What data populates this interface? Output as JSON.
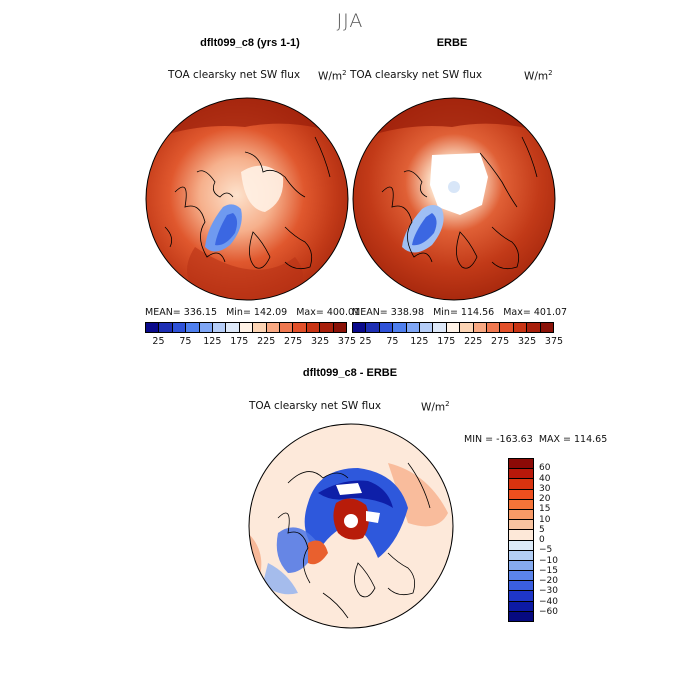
{
  "suptitle": "JJA",
  "panels": [
    {
      "title": "dflt099_c8 (yrs 1-1)",
      "variable": "TOA clearsky net SW flux",
      "units": "W/m",
      "units_sup": "2",
      "stats": "MEAN= 336.15   Min= 142.09   Max= 400.01"
    },
    {
      "title": "ERBE",
      "variable": "TOA clearsky net SW flux",
      "units": "W/m",
      "units_sup": "2",
      "stats": "MEAN= 338.98   Min= 114.56   Max= 401.07"
    },
    {
      "title": "dflt099_c8 - ERBE",
      "variable": "TOA clearsky net SW flux",
      "units": "W/m",
      "units_sup": "2",
      "stats": "MIN = -163.63  MAX = 114.65"
    }
  ],
  "top_colorbar": {
    "ticks": [
      "25",
      "75",
      "125",
      "175",
      "225",
      "275",
      "325",
      "375"
    ],
    "colors": [
      "#0a0a8c",
      "#1e2fb4",
      "#2f52d8",
      "#4f7fee",
      "#7fa6f5",
      "#b5cdf7",
      "#dde8f8",
      "#fff2e6",
      "#fcd4b4",
      "#f8a882",
      "#ef7850",
      "#e2502a",
      "#c83414",
      "#a8200c",
      "#8a1208"
    ]
  },
  "diff_colorbar": {
    "ticks": [
      "60",
      "40",
      "30",
      "20",
      "15",
      "10",
      "5",
      "0",
      "−5",
      "−10",
      "−15",
      "−20",
      "−30",
      "−40",
      "−60"
    ],
    "colors": [
      "#8c0a06",
      "#b8180a",
      "#d8330f",
      "#ee4f1e",
      "#f67438",
      "#f89a66",
      "#f9c4a0",
      "#fde8d8",
      "#dceaf8",
      "#b3cef4",
      "#86abef",
      "#5b84ea",
      "#3a5ee0",
      "#1e36c8",
      "#0c1aa4",
      "#060a80"
    ]
  }
}
